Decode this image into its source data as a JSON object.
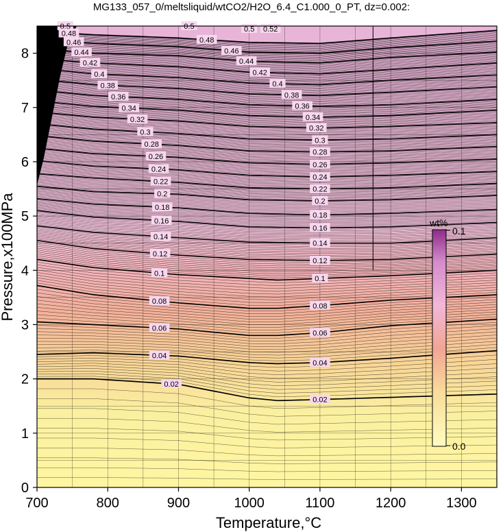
{
  "chart_data": {
    "type": "heatmap",
    "title": "MG133_057_0/meltsliquid/wtCO2/H2O_6.4_C1.000_0_PT, dz=0.002:",
    "xlabel": "Temperature,°C",
    "ylabel": "Pressure,x100MPa",
    "xlim": [
      700,
      1350
    ],
    "ylim": [
      0,
      8.5
    ],
    "xticks": [
      "700",
      "800",
      "900",
      "1000",
      "1100",
      "1200",
      "1300"
    ],
    "yticks": [
      "0",
      "1",
      "2",
      "3",
      "4",
      "5",
      "6",
      "7",
      "8"
    ],
    "grid": true,
    "contour_interval": 0.002,
    "labeled_contours": [
      {
        "level": 0.02,
        "label": "0.02",
        "pressure_at_T": [
          [
            700,
            2.0
          ],
          [
            780,
            2.0
          ],
          [
            900,
            1.9
          ],
          [
            1000,
            1.65
          ],
          [
            1040,
            1.6
          ],
          [
            1100,
            1.62
          ],
          [
            1200,
            1.66
          ],
          [
            1350,
            1.72
          ]
        ]
      },
      {
        "level": 0.04,
        "label": "0.04",
        "pressure_at_T": [
          [
            700,
            2.45
          ],
          [
            780,
            2.48
          ],
          [
            900,
            2.42
          ],
          [
            1000,
            2.3
          ],
          [
            1040,
            2.28
          ],
          [
            1100,
            2.3
          ],
          [
            1200,
            2.38
          ],
          [
            1350,
            2.52
          ]
        ]
      },
      {
        "level": 0.06,
        "label": "0.06",
        "pressure_at_T": [
          [
            700,
            3.05
          ],
          [
            780,
            3.0
          ],
          [
            900,
            2.92
          ],
          [
            1000,
            2.8
          ],
          [
            1040,
            2.8
          ],
          [
            1100,
            2.85
          ],
          [
            1200,
            2.98
          ],
          [
            1350,
            3.1
          ]
        ]
      },
      {
        "level": 0.08,
        "label": "0.08",
        "pressure_at_T": [
          [
            700,
            3.72
          ],
          [
            780,
            3.55
          ],
          [
            900,
            3.4
          ],
          [
            1000,
            3.3
          ],
          [
            1040,
            3.3
          ],
          [
            1100,
            3.35
          ],
          [
            1200,
            3.45
          ],
          [
            1350,
            3.55
          ]
        ]
      },
      {
        "level": 0.1,
        "label": "0.1",
        "pressure_at_T": [
          [
            700,
            4.2
          ],
          [
            780,
            4.05
          ],
          [
            900,
            3.92
          ],
          [
            1000,
            3.85
          ],
          [
            1040,
            3.82
          ],
          [
            1100,
            3.85
          ],
          [
            1200,
            3.9
          ],
          [
            1350,
            4.0
          ]
        ]
      },
      {
        "level": 0.12,
        "label": "0.12",
        "pressure_at_T": [
          [
            700,
            4.55
          ],
          [
            780,
            4.4
          ],
          [
            900,
            4.28
          ],
          [
            1000,
            4.2
          ],
          [
            1100,
            4.18
          ],
          [
            1200,
            4.2
          ],
          [
            1350,
            4.3
          ]
        ]
      },
      {
        "level": 0.14,
        "label": "0.14",
        "pressure_at_T": [
          [
            700,
            4.82
          ],
          [
            780,
            4.7
          ],
          [
            900,
            4.6
          ],
          [
            1000,
            4.52
          ],
          [
            1100,
            4.5
          ],
          [
            1200,
            4.5
          ],
          [
            1350,
            4.6
          ]
        ]
      },
      {
        "level": 0.16,
        "label": "0.16",
        "pressure_at_T": [
          [
            700,
            5.1
          ],
          [
            780,
            4.98
          ],
          [
            900,
            4.9
          ],
          [
            1000,
            4.8
          ],
          [
            1100,
            4.78
          ],
          [
            1200,
            4.8
          ],
          [
            1350,
            4.88
          ]
        ]
      },
      {
        "level": 0.18,
        "label": "0.18",
        "pressure_at_T": [
          [
            700,
            5.32
          ],
          [
            780,
            5.22
          ],
          [
            900,
            5.15
          ],
          [
            1000,
            5.05
          ],
          [
            1100,
            5.02
          ],
          [
            1200,
            5.05
          ],
          [
            1350,
            5.12
          ]
        ]
      },
      {
        "level": 0.2,
        "label": "0.2",
        "pressure_at_T": [
          [
            700,
            5.55
          ],
          [
            780,
            5.45
          ],
          [
            900,
            5.4
          ],
          [
            1000,
            5.3
          ],
          [
            1100,
            5.28
          ],
          [
            1200,
            5.3
          ],
          [
            1350,
            5.38
          ]
        ]
      },
      {
        "level": 0.22,
        "label": "0.22",
        "pressure_at_T": [
          [
            700,
            5.78
          ],
          [
            780,
            5.7
          ],
          [
            900,
            5.62
          ],
          [
            1000,
            5.52
          ],
          [
            1100,
            5.5
          ],
          [
            1200,
            5.52
          ],
          [
            1350,
            5.6
          ]
        ]
      },
      {
        "level": 0.24,
        "label": "0.24",
        "pressure_at_T": [
          [
            700,
            6.02
          ],
          [
            780,
            5.92
          ],
          [
            900,
            5.85
          ],
          [
            1000,
            5.75
          ],
          [
            1100,
            5.72
          ],
          [
            1200,
            5.75
          ],
          [
            1350,
            5.82
          ]
        ]
      },
      {
        "level": 0.26,
        "label": "0.26",
        "pressure_at_T": [
          [
            700,
            6.25
          ],
          [
            780,
            6.15
          ],
          [
            900,
            6.08
          ],
          [
            1000,
            5.98
          ],
          [
            1100,
            5.95
          ],
          [
            1200,
            5.98
          ],
          [
            1350,
            6.05
          ]
        ]
      },
      {
        "level": 0.28,
        "label": "0.28",
        "pressure_at_T": [
          [
            700,
            6.48
          ],
          [
            780,
            6.38
          ],
          [
            900,
            6.3
          ],
          [
            1000,
            6.2
          ],
          [
            1100,
            6.18
          ],
          [
            1200,
            6.2
          ],
          [
            1350,
            6.28
          ]
        ]
      },
      {
        "level": 0.3,
        "label": "0.3",
        "pressure_at_T": [
          [
            700,
            6.7
          ],
          [
            780,
            6.6
          ],
          [
            900,
            6.52
          ],
          [
            1000,
            6.42
          ],
          [
            1100,
            6.4
          ],
          [
            1200,
            6.42
          ],
          [
            1350,
            6.5
          ]
        ]
      },
      {
        "level": 0.32,
        "label": "0.32",
        "pressure_at_T": [
          [
            700,
            6.92
          ],
          [
            780,
            6.82
          ],
          [
            900,
            6.75
          ],
          [
            1000,
            6.65
          ],
          [
            1100,
            6.62
          ],
          [
            1200,
            6.65
          ],
          [
            1350,
            6.72
          ]
        ]
      },
      {
        "level": 0.34,
        "label": "0.34",
        "pressure_at_T": [
          [
            700,
            7.12
          ],
          [
            780,
            7.02
          ],
          [
            900,
            6.95
          ],
          [
            1000,
            6.85
          ],
          [
            1100,
            6.82
          ],
          [
            1200,
            6.85
          ],
          [
            1350,
            6.95
          ]
        ]
      },
      {
        "level": 0.36,
        "label": "0.36",
        "pressure_at_T": [
          [
            700,
            7.32
          ],
          [
            780,
            7.22
          ],
          [
            900,
            7.15
          ],
          [
            1000,
            7.05
          ],
          [
            1100,
            7.02
          ],
          [
            1200,
            7.05
          ],
          [
            1350,
            7.15
          ]
        ]
      },
      {
        "level": 0.38,
        "label": "0.38",
        "pressure_at_T": [
          [
            700,
            7.52
          ],
          [
            780,
            7.42
          ],
          [
            900,
            7.35
          ],
          [
            1000,
            7.25
          ],
          [
            1100,
            7.22
          ],
          [
            1200,
            7.28
          ],
          [
            1350,
            7.38
          ]
        ]
      },
      {
        "level": 0.4,
        "label": "0.4",
        "pressure_at_T": [
          [
            700,
            7.72
          ],
          [
            780,
            7.62
          ],
          [
            900,
            7.55
          ],
          [
            1000,
            7.45
          ],
          [
            1100,
            7.42
          ],
          [
            1200,
            7.5
          ],
          [
            1350,
            7.6
          ]
        ]
      },
      {
        "level": 0.42,
        "label": "0.42",
        "pressure_at_T": [
          [
            700,
            7.9
          ],
          [
            780,
            7.82
          ],
          [
            900,
            7.75
          ],
          [
            1000,
            7.65
          ],
          [
            1100,
            7.62
          ],
          [
            1200,
            7.7
          ],
          [
            1350,
            7.82
          ]
        ]
      },
      {
        "level": 0.44,
        "label": "0.44",
        "pressure_at_T": [
          [
            700,
            8.08
          ],
          [
            780,
            8.0
          ],
          [
            900,
            7.95
          ],
          [
            1000,
            7.85
          ],
          [
            1100,
            7.82
          ],
          [
            1200,
            7.92
          ],
          [
            1350,
            8.02
          ]
        ]
      },
      {
        "level": 0.46,
        "label": "0.46",
        "pressure_at_T": [
          [
            700,
            8.25
          ],
          [
            780,
            8.18
          ],
          [
            900,
            8.12
          ],
          [
            1000,
            8.02
          ],
          [
            1100,
            8.0
          ],
          [
            1200,
            8.1
          ],
          [
            1350,
            8.22
          ]
        ]
      },
      {
        "level": 0.48,
        "label": "0.48",
        "pressure_at_T": [
          [
            700,
            8.4
          ],
          [
            780,
            8.34
          ],
          [
            900,
            8.28
          ],
          [
            1000,
            8.2
          ],
          [
            1100,
            8.18
          ],
          [
            1200,
            8.28
          ],
          [
            1350,
            8.42
          ]
        ]
      }
    ],
    "label_columns": [
      {
        "labels": [
          "0.5",
          "0.48",
          "0.46",
          "0.44",
          "0.42",
          "0.4",
          "0.38",
          "0.36",
          "0.34",
          "0.32",
          "0.3",
          "0.28",
          "0.26",
          "0.24",
          "0.22",
          "0.2",
          "0.18",
          "0.16",
          "0.14",
          "0.12",
          "0.1",
          "0.08",
          "0.06",
          "0.04",
          "0.02"
        ]
      },
      {
        "labels": [
          "0.5",
          "0.48",
          "0.46",
          "0.44",
          "0.42",
          "0.4",
          "0.38",
          "0.36",
          "0.34",
          "0.32",
          "0.3",
          "0.28",
          "0.26",
          "0.24",
          "0.22",
          "0.2",
          "0.18",
          "0.16",
          "0.14",
          "0.12",
          "0.1",
          "0.08",
          "0.06",
          "0.04",
          "0.02"
        ]
      }
    ],
    "extra_labels": [
      "0.5",
      "0.52"
    ],
    "colorbar": {
      "unit": "wt%",
      "max_label": "0.1",
      "min_label": "0.0",
      "colors": [
        "#fdfaa6",
        "#f7d08c",
        "#f2a392",
        "#f0b4d6",
        "#e0a1d8",
        "#b64db0",
        "#7e1f7a"
      ]
    },
    "colors": {
      "low": "#fff7a8",
      "mid": "#f1a596",
      "high": "#f5c6e3",
      "top": "#e9b3d8",
      "saturated": "#000000",
      "line": "#000000"
    }
  }
}
